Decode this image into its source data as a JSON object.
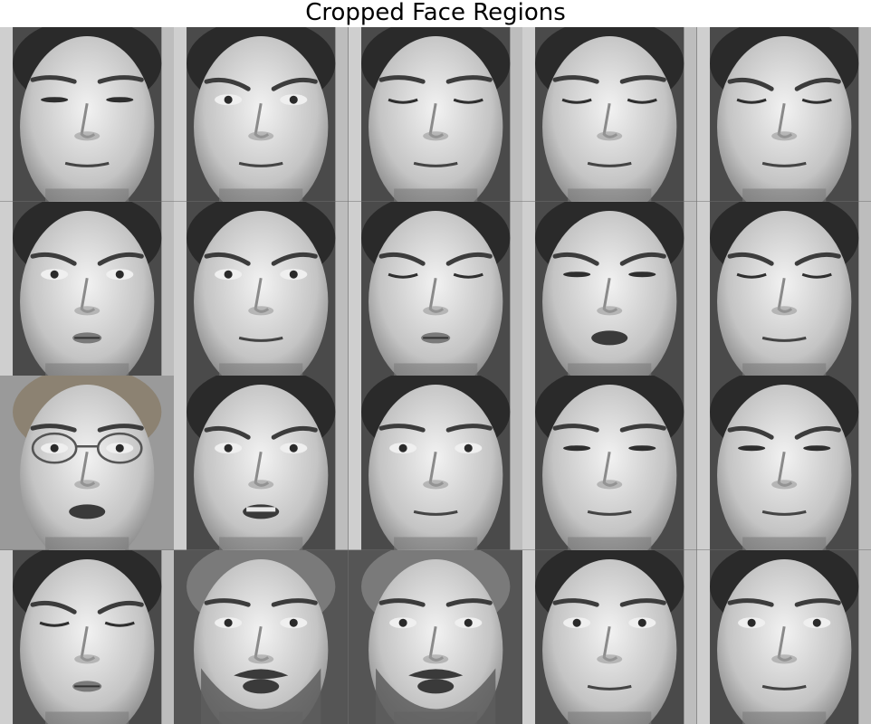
{
  "title": "Cropped Face Regions",
  "grid": {
    "rows": 4,
    "columns": 5
  },
  "faces": [
    {
      "subject": "A",
      "eyes": "narrowed",
      "brow": "neutral",
      "mouth": "closed"
    },
    {
      "subject": "A",
      "eyes": "open",
      "brow": "furrowed",
      "mouth": "closed"
    },
    {
      "subject": "A",
      "eyes": "closed",
      "brow": "neutral",
      "mouth": "closed"
    },
    {
      "subject": "A",
      "eyes": "closed",
      "brow": "neutral",
      "mouth": "closed"
    },
    {
      "subject": "A",
      "eyes": "closed",
      "brow": "furrowed",
      "mouth": "closed"
    },
    {
      "subject": "A",
      "eyes": "open",
      "brow": "furrowed",
      "mouth": "pursed"
    },
    {
      "subject": "A",
      "eyes": "open",
      "brow": "furrowed",
      "mouth": "closed"
    },
    {
      "subject": "A",
      "eyes": "closed",
      "brow": "furrowed",
      "mouth": "pursed"
    },
    {
      "subject": "A",
      "eyes": "narrowed",
      "brow": "furrowed",
      "mouth": "open"
    },
    {
      "subject": "A",
      "eyes": "closed",
      "brow": "furrowed",
      "mouth": "closed"
    },
    {
      "subject": "B",
      "eyes": "open",
      "brow": "neutral",
      "mouth": "open",
      "glasses": true
    },
    {
      "subject": "A",
      "eyes": "open",
      "brow": "furrowed",
      "mouth": "teeth"
    },
    {
      "subject": "A",
      "eyes": "open",
      "brow": "neutral",
      "mouth": "closed"
    },
    {
      "subject": "A",
      "eyes": "narrowed",
      "brow": "neutral",
      "mouth": "closed"
    },
    {
      "subject": "A",
      "eyes": "narrowed",
      "brow": "furrowed",
      "mouth": "closed"
    },
    {
      "subject": "A",
      "eyes": "closed",
      "brow": "furrowed",
      "mouth": "pursed"
    },
    {
      "subject": "C",
      "eyes": "open",
      "brow": "neutral",
      "mouth": "open",
      "beard": true
    },
    {
      "subject": "C",
      "eyes": "open",
      "brow": "neutral",
      "mouth": "open",
      "beard": true
    },
    {
      "subject": "D",
      "eyes": "open",
      "brow": "neutral",
      "mouth": "closed"
    },
    {
      "subject": "E",
      "eyes": "open",
      "brow": "neutral",
      "mouth": "closed"
    }
  ]
}
